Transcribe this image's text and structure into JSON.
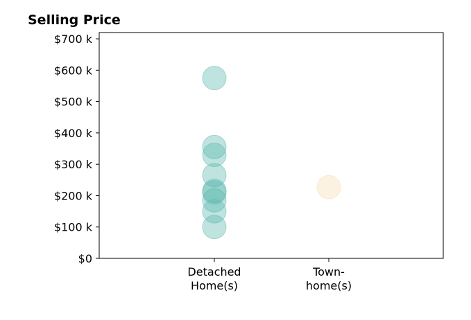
{
  "chart_data": {
    "type": "scatter",
    "title": "Selling Price",
    "categories": [
      "Detached\nHome(s)",
      "Town-\nhome(s)"
    ],
    "ylim": [
      0,
      720000
    ],
    "yticks": [
      0,
      100000,
      200000,
      300000,
      400000,
      500000,
      600000,
      700000
    ],
    "ytick_labels": [
      "$0",
      "$100 k",
      "$200 k",
      "$300 k",
      "$400 k",
      "$500 k",
      "$600 k",
      "$700 k"
    ],
    "grid": false,
    "series": [
      {
        "category": "Detached\nHome(s)",
        "color": "#5fb8ae",
        "values": [
          575000,
          355000,
          330000,
          265000,
          215000,
          210000,
          185000,
          150000,
          100000
        ]
      },
      {
        "category": "Town-\nhome(s)",
        "color": "#f5deb3",
        "values": [
          227000
        ]
      }
    ]
  }
}
